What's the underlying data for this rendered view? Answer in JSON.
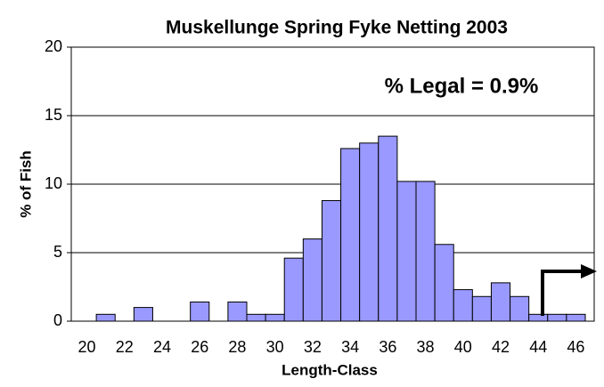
{
  "chart_data": {
    "type": "bar",
    "title": "Muskellunge Spring Fyke Netting 2003",
    "annotation": "% Legal = 0.9%",
    "xlabel": "Length-Class",
    "ylabel": "% of Fish",
    "categories": [
      "20",
      null,
      "22",
      null,
      "24",
      null,
      "26",
      null,
      "28",
      null,
      "30",
      null,
      "32",
      null,
      "34",
      null,
      "36",
      null,
      "38",
      null,
      "40",
      null,
      "42",
      null,
      "44",
      null,
      "46"
    ],
    "values": [
      0,
      0.5,
      0,
      1.0,
      0,
      0,
      1.4,
      0,
      1.4,
      0.5,
      0.5,
      4.6,
      6.0,
      8.8,
      12.6,
      13.0,
      13.5,
      10.2,
      10.2,
      5.6,
      2.3,
      1.8,
      2.8,
      1.8,
      0.5,
      0.5,
      0.5
    ],
    "color": "#9999ff",
    "ylim": [
      0,
      20
    ],
    "yticks": [
      0,
      5,
      10,
      15,
      20
    ],
    "grid": true
  }
}
